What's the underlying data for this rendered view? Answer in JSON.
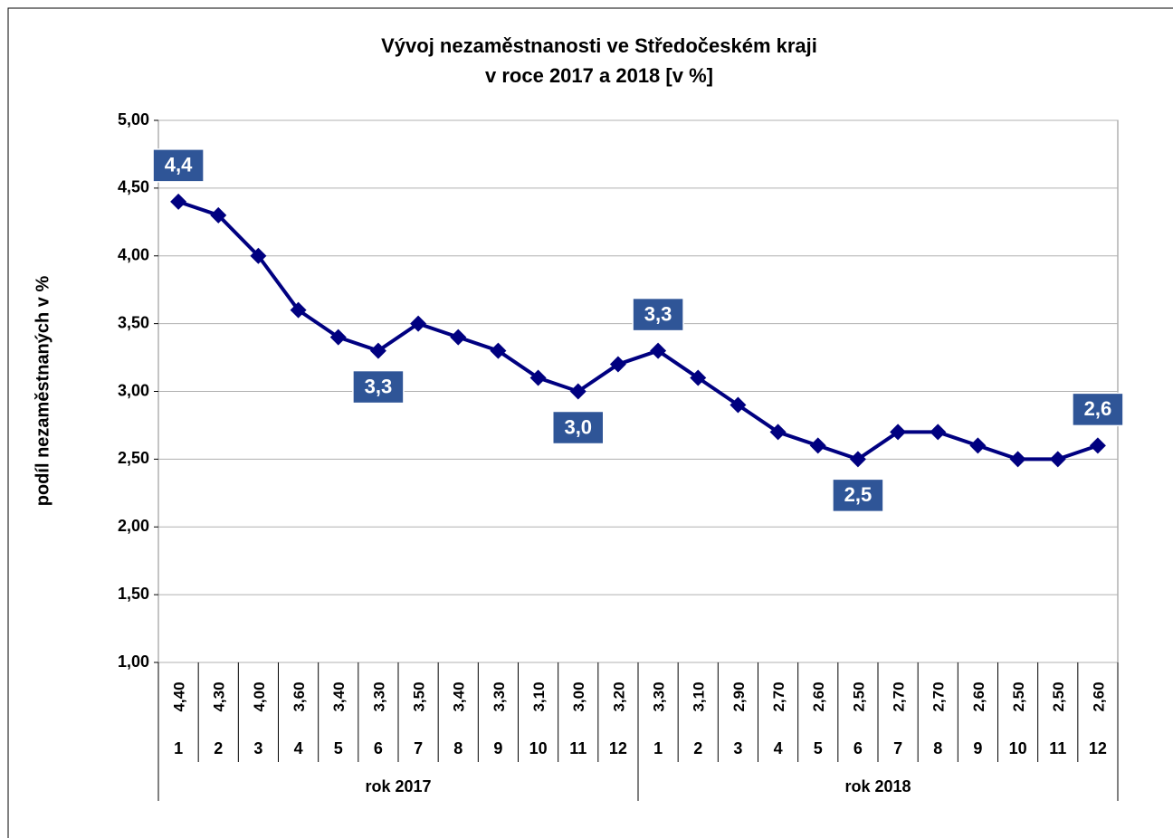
{
  "chart_data": {
    "type": "line",
    "title": [
      "Vývoj nezaměstnanosti ve Středočeském kraji",
      "v roce 2017 a 2018  [v %]"
    ],
    "y_label": "podíl nezaměstnaných  v %",
    "categories": [
      "1",
      "2",
      "3",
      "4",
      "5",
      "6",
      "7",
      "8",
      "9",
      "10",
      "11",
      "12",
      "1",
      "2",
      "3",
      "4",
      "5",
      "6",
      "7",
      "8",
      "9",
      "10",
      "11",
      "12"
    ],
    "groups": [
      "rok 2017",
      "rok 2018"
    ],
    "series": [
      {
        "name": "podíl nezaměstnaných",
        "color": "#000080",
        "values": [
          4.4,
          4.3,
          4.0,
          3.6,
          3.4,
          3.3,
          3.5,
          3.4,
          3.3,
          3.1,
          3.0,
          3.2,
          3.3,
          3.1,
          2.9,
          2.7,
          2.6,
          2.5,
          2.7,
          2.7,
          2.6,
          2.5,
          2.5,
          2.6
        ],
        "value_labels": [
          "4,40",
          "4,30",
          "4,00",
          "3,60",
          "3,40",
          "3,30",
          "3,50",
          "3,40",
          "3,30",
          "3,10",
          "3,00",
          "3,20",
          "3,30",
          "3,10",
          "2,90",
          "2,70",
          "2,60",
          "2,50",
          "2,70",
          "2,70",
          "2,60",
          "2,50",
          "2,50",
          "2,60"
        ],
        "callout_labels": [
          "4,4",
          null,
          null,
          null,
          null,
          "3,3",
          null,
          null,
          null,
          null,
          "3,0",
          null,
          "3,3",
          null,
          null,
          null,
          null,
          "2,5",
          null,
          null,
          null,
          null,
          null,
          "2,6"
        ]
      }
    ],
    "ylim": [
      1,
      5
    ],
    "yticks": [
      {
        "value": 1,
        "label": "1,00"
      },
      {
        "value": 1.5,
        "label": "1,50"
      },
      {
        "value": 2,
        "label": "2,00"
      },
      {
        "value": 2.5,
        "label": "2,50"
      },
      {
        "value": 3,
        "label": "3,00"
      },
      {
        "value": 3.5,
        "label": "3,50"
      },
      {
        "value": 4,
        "label": "4,00"
      },
      {
        "value": 4.5,
        "label": "4,50"
      },
      {
        "value": 5,
        "label": "5,00"
      }
    ],
    "grid": true,
    "callout_color": "#2F5597"
  }
}
